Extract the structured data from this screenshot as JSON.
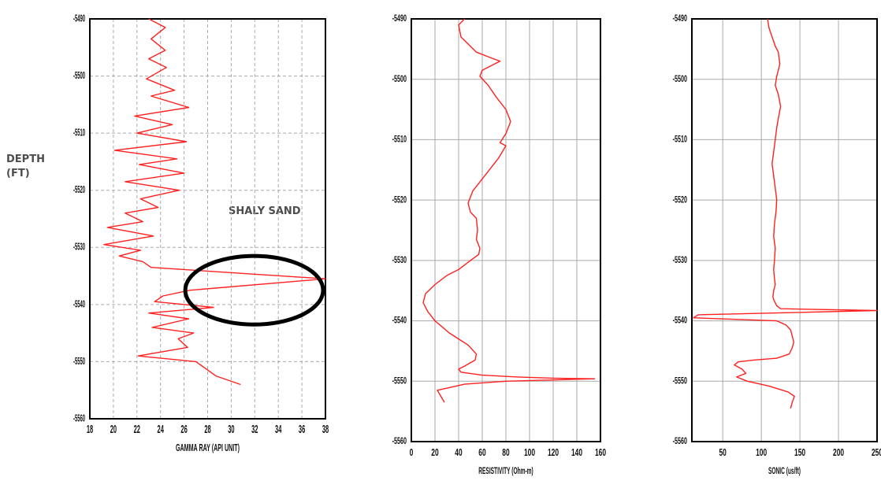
{
  "annotations": {
    "depth_label_line1": "DEPTH",
    "depth_label_line2": "(FT)",
    "shaly_sand_label": "SHALY SAND"
  },
  "colors": {
    "curve": "#ff2020",
    "ellipse": "#000000",
    "grid": "#aaaaaa",
    "frame": "#000000"
  },
  "chart_data": [
    {
      "type": "line",
      "title": "",
      "xlabel": "GAMMA RAY (API UNIT)",
      "ylabel": "",
      "xlim": [
        18,
        38
      ],
      "ylim": [
        5560,
        5490
      ],
      "xticks": [
        18,
        20,
        22,
        24,
        26,
        28,
        30,
        32,
        34,
        36,
        38
      ],
      "yticks": [
        5490,
        5500,
        5510,
        5520,
        5530,
        5540,
        5550,
        5560
      ],
      "grid": true,
      "series": [
        {
          "x": [
            23.0,
            24.4,
            23.2,
            24.4,
            23.0,
            24.5,
            22.8,
            25.2,
            23.2,
            26.4,
            21.8,
            25.0,
            22.0,
            26.2,
            20.1,
            25.4,
            22.2,
            26.0,
            21.0,
            25.6,
            22.3,
            23.8,
            21.0,
            22.5,
            19.5,
            23.4,
            19.2,
            22.3,
            20.5,
            22.5,
            23.2,
            38.0,
            26.5,
            24.2,
            23.5,
            28.5,
            23.0,
            26.4,
            23.3,
            26.8,
            25.5,
            26.3,
            22.1,
            27.0,
            28.7,
            30.8
          ],
          "y": [
            5490.0,
            5491.5,
            5493.5,
            5495.5,
            5497.0,
            5498.5,
            5500.5,
            5502.5,
            5503.5,
            5505.5,
            5507.0,
            5508.5,
            5510.0,
            5511.5,
            5513.0,
            5514.5,
            5515.5,
            5517.0,
            5518.5,
            5520.0,
            5521.5,
            5523.0,
            5524.0,
            5525.5,
            5526.5,
            5528.0,
            5529.5,
            5530.5,
            5531.5,
            5532.5,
            5533.5,
            5535.5,
            5537.5,
            5538.5,
            5539.5,
            5540.5,
            5541.5,
            5542.5,
            5544.0,
            5545.0,
            5546.0,
            5547.5,
            5549.0,
            5550.0,
            5552.5,
            5554.0
          ]
        }
      ],
      "annotation": {
        "label": "SHALY SAND",
        "x_range": [
          26.1,
          37.8
        ],
        "y_range": [
          5531.5,
          5543.5
        ]
      }
    },
    {
      "type": "line",
      "title": "",
      "xlabel": "RESISTIVITY (Ohm-m)",
      "ylabel": "",
      "xlim": [
        0,
        160
      ],
      "ylim": [
        5560,
        5490
      ],
      "xticks": [
        0,
        20,
        40,
        60,
        80,
        100,
        120,
        140,
        160
      ],
      "yticks": [
        5490,
        5500,
        5510,
        5520,
        5530,
        5540,
        5550,
        5560
      ],
      "grid": true,
      "series": [
        {
          "x": [
            45,
            40,
            42,
            55,
            68,
            75,
            60,
            58,
            65,
            72,
            80,
            84,
            80,
            75,
            80,
            74,
            68,
            60,
            52,
            48,
            50,
            55,
            56,
            55,
            58,
            57,
            50,
            40,
            30,
            20,
            12,
            10,
            14,
            20,
            26,
            32,
            40,
            48,
            55,
            54,
            45,
            40,
            42,
            60,
            90,
            120,
            155,
            80,
            45,
            22,
            25,
            28
          ],
          "y": [
            5490.0,
            5491.0,
            5493.0,
            5495.5,
            5496.5,
            5497.0,
            5498.5,
            5499.5,
            5501.0,
            5503.0,
            5505.0,
            5507.0,
            5509.0,
            5510.5,
            5511.0,
            5513.0,
            5514.5,
            5516.5,
            5518.5,
            5520.5,
            5522.0,
            5523.0,
            5525.0,
            5526.5,
            5528.0,
            5529.0,
            5530.0,
            5531.5,
            5532.5,
            5534.0,
            5535.5,
            5537.0,
            5538.5,
            5540.0,
            5541.0,
            5542.0,
            5543.0,
            5544.0,
            5545.5,
            5546.5,
            5547.5,
            5548.0,
            5548.5,
            5549.0,
            5549.3,
            5549.5,
            5549.6,
            5550.0,
            5550.5,
            5551.5,
            5552.5,
            5553.5
          ]
        }
      ]
    },
    {
      "type": "line",
      "title": "",
      "xlabel": "SONIC (us/ft)",
      "ylabel": "",
      "xlim": [
        10,
        250
      ],
      "ylim": [
        5560,
        5490
      ],
      "xticks": [
        50,
        100,
        150,
        200,
        250
      ],
      "yticks": [
        5490,
        5500,
        5510,
        5520,
        5530,
        5540,
        5550,
        5560
      ],
      "grid": true,
      "series": [
        {
          "x": [
            108,
            110,
            114,
            118,
            122,
            124,
            120,
            118,
            122,
            125,
            122,
            120,
            118,
            116,
            114,
            116,
            118,
            120,
            119,
            117,
            116,
            118,
            117,
            116,
            117,
            118,
            116,
            115,
            116,
            118,
            120,
            125,
            250,
            18,
            12,
            120,
            132,
            138,
            140,
            142,
            140,
            136,
            120,
            90,
            70,
            65,
            75,
            80,
            68,
            82,
            110,
            135,
            143,
            140,
            138
          ],
          "y": [
            5490.0,
            5491.5,
            5493.0,
            5494.5,
            5495.5,
            5497.5,
            5499.5,
            5501.0,
            5502.5,
            5504.5,
            5506.5,
            5508.0,
            5510.0,
            5512.0,
            5514.0,
            5516.0,
            5518.0,
            5520.0,
            5522.0,
            5524.0,
            5526.0,
            5528.0,
            5530.0,
            5531.5,
            5533.0,
            5534.0,
            5535.0,
            5536.0,
            5536.5,
            5537.0,
            5537.5,
            5538.0,
            5538.3,
            5539.0,
            5539.5,
            5540.0,
            5540.7,
            5541.5,
            5542.5,
            5543.5,
            5544.5,
            5545.5,
            5546.2,
            5546.5,
            5546.8,
            5547.3,
            5548.0,
            5548.7,
            5549.3,
            5550.0,
            5550.8,
            5551.8,
            5552.5,
            5553.5,
            5554.5
          ]
        }
      ]
    }
  ]
}
